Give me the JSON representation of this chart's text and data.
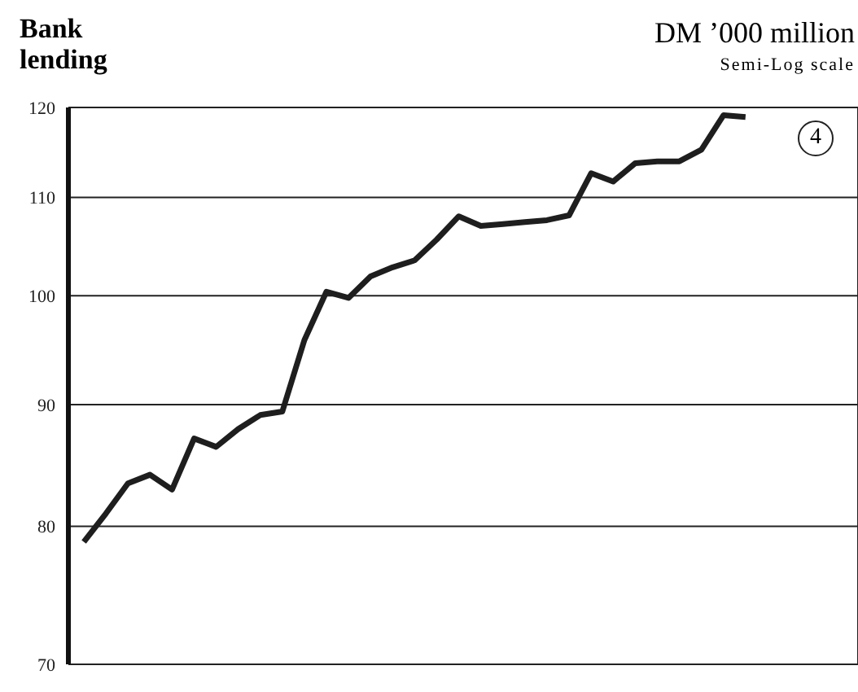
{
  "chart_data": {
    "type": "line",
    "title": "Bank lending",
    "ylabel": "DM ’000 million",
    "annotations": [
      "Semi-Log scale",
      "4"
    ],
    "categories": [
      null,
      null,
      null,
      null,
      null,
      null,
      null,
      null,
      null,
      null,
      null,
      null,
      null,
      null,
      null,
      null,
      null,
      null,
      null,
      null,
      null,
      null,
      null,
      null,
      null,
      null,
      null,
      null,
      null,
      null,
      null
    ],
    "series": [
      {
        "color": "#1e1e1e",
        "values": [
          78.8,
          81.0,
          83.4,
          84.1,
          82.9,
          87.1,
          86.4,
          87.9,
          89.1,
          89.4,
          95.8,
          100.4,
          99.8,
          101.9,
          102.8,
          103.5,
          105.6,
          108.0,
          107.0,
          107.2,
          107.4,
          107.6,
          108.1,
          112.6,
          111.7,
          113.7,
          113.9,
          113.9,
          115.2,
          119.1,
          118.9
        ]
      }
    ],
    "log": true,
    "ylim": [
      70,
      120
    ],
    "yticks": [
      70,
      80,
      90,
      100,
      110,
      120
    ],
    "grid": true,
    "marker": "none",
    "line_style": "solid",
    "tick_labels": "y"
  }
}
